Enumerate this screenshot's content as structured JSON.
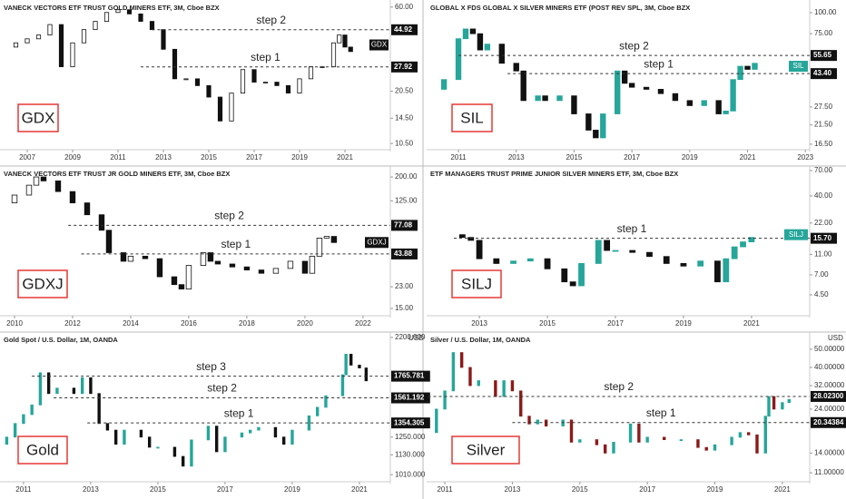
{
  "chart_data": [
    {
      "type": "candlestick",
      "title": "VANECK VECTORS ETF TRUST GOLD MINERS ETF, 3M, Cboe BZX",
      "label": "GDX",
      "log_scale": true,
      "up_color": "#ffffff",
      "down_color": "#111111",
      "tag": {
        "label": "GDX",
        "value": 37,
        "color": "#111111"
      },
      "xlim": [
        2005.8,
        2023.0
      ],
      "xticks": [
        2007,
        2009,
        2011,
        2013,
        2015,
        2017,
        2019,
        2021
      ],
      "ylim": [
        9.7,
        65.7
      ],
      "yticks": [
        {
          "value": 60,
          "label": "60.00"
        },
        {
          "value": 20.5,
          "label": "20.50"
        },
        {
          "value": 14.5,
          "label": "14.50"
        },
        {
          "value": 10.5,
          "label": "10.50"
        }
      ],
      "levels": [
        {
          "name": "step 2",
          "value": 44.92,
          "label": "44.92",
          "x": 2012.5
        },
        {
          "name": "step 1",
          "value": 27.92,
          "label": "27.92",
          "x": 2012.0
        }
      ],
      "open": 36,
      "x": [
        2006.5,
        2007,
        2007.5,
        2008,
        2008.5,
        2009,
        2009.5,
        2010,
        2010.5,
        2011,
        2011.5,
        2012,
        2012.5,
        2013,
        2013.5,
        2014,
        2014.5,
        2015,
        2015.5,
        2016,
        2016.5,
        2017,
        2017.5,
        2018,
        2018.5,
        2019,
        2019.5,
        2020,
        2020.5,
        2020.75,
        2021,
        2021.25
      ],
      "values": [
        38,
        40,
        42,
        48,
        28,
        38,
        45,
        50,
        56,
        58,
        55,
        50,
        45,
        35,
        24,
        24,
        22,
        19,
        14,
        20,
        27,
        23,
        23,
        22,
        20,
        24,
        28,
        28,
        38,
        42,
        36,
        34
      ]
    },
    {
      "type": "candlestick",
      "title": "GLOBAL X FDS GLOBAL X SILVER MINERS ETF (POST REV SPL, 3M, Cboe BZX",
      "label": "SIL",
      "log_scale": true,
      "up_color": "#26a69a",
      "down_color": "#111111",
      "tag": {
        "label": "SIL",
        "value": 48,
        "color": "#26a69a"
      },
      "xlim": [
        2009.9,
        2023.15
      ],
      "xticks": [
        2011,
        2013,
        2015,
        2017,
        2019,
        2021,
        2023
      ],
      "ylim": [
        15.3,
        119
      ],
      "yticks": [
        {
          "value": 100,
          "label": "100.00"
        },
        {
          "value": 75,
          "label": "75.00"
        },
        {
          "value": 27.5,
          "label": "27.50"
        },
        {
          "value": 21.5,
          "label": "21.50"
        },
        {
          "value": 16.5,
          "label": "16.50"
        }
      ],
      "levels": [
        {
          "name": "step 2",
          "value": 55.65,
          "label": "55.65",
          "x": 2011.0
        },
        {
          "name": "step 1",
          "value": 43.4,
          "label": "43.40",
          "x": 2012.7
        }
      ],
      "open": 35,
      "x": [
        2010.5,
        2011,
        2011.25,
        2011.5,
        2011.75,
        2012,
        2012.5,
        2013,
        2013.25,
        2013.75,
        2014,
        2014.5,
        2015,
        2015.5,
        2015.75,
        2016,
        2016.5,
        2016.75,
        2017,
        2017.5,
        2018,
        2018.5,
        2019,
        2019.5,
        2020,
        2020.25,
        2020.5,
        2020.75,
        2021,
        2021.25
      ],
      "values": [
        40,
        70,
        80,
        75,
        60,
        65,
        50,
        45,
        30,
        32,
        30,
        32,
        25,
        20,
        18,
        25,
        45,
        38,
        36,
        35,
        33,
        30,
        28,
        30,
        25,
        26,
        40,
        48,
        46,
        50
      ]
    },
    {
      "type": "candlestick",
      "title": "VANECK VECTORS ETF TRUST JR GOLD MINERS ETF, 3M, Cboe BZX",
      "label": "GDXJ",
      "log_scale": true,
      "up_color": "#ffffff",
      "down_color": "#111111",
      "tag": {
        "label": "GDXJ",
        "value": 55,
        "color": "#111111"
      },
      "xlim": [
        2009.5,
        2022.94
      ],
      "xticks": [
        2010,
        2012,
        2014,
        2016,
        2018,
        2020,
        2022
      ],
      "ylim": [
        13.0,
        248
      ],
      "yticks": [
        {
          "value": 200,
          "label": "200.00"
        },
        {
          "value": 125,
          "label": "125.00"
        },
        {
          "value": 23,
          "label": "23.00"
        },
        {
          "value": 15,
          "label": "15.00"
        }
      ],
      "levels": [
        {
          "name": "step 2",
          "value": 77.08,
          "label": "77.08",
          "x": 2011.85
        },
        {
          "name": "step 1",
          "value": 43.88,
          "label": "43.88",
          "x": 2012.3
        }
      ],
      "open": 120,
      "x": [
        2010,
        2010.5,
        2010.75,
        2011,
        2011.5,
        2012,
        2012.5,
        2013,
        2013.25,
        2013.75,
        2014,
        2014.5,
        2015,
        2015.5,
        2015.75,
        2016,
        2016.5,
        2016.75,
        2017,
        2017.5,
        2018,
        2018.5,
        2019,
        2019.5,
        2020,
        2020.25,
        2020.5,
        2020.75,
        2021
      ],
      "values": [
        140,
        170,
        200,
        185,
        150,
        120,
        95,
        70,
        45,
        38,
        42,
        40,
        28,
        24,
        22,
        35,
        45,
        38,
        36,
        34,
        32,
        30,
        33,
        38,
        30,
        42,
        60,
        62,
        55
      ]
    },
    {
      "type": "candlestick",
      "title": "ETF MANAGERS TRUST PRIME JUNIOR SILVER MINERS ETF, 3M, Cboe BZX",
      "label": "SILJ",
      "log_scale": true,
      "up_color": "#26a69a",
      "down_color": "#111111",
      "tag": {
        "label": "SILJ",
        "value": 17,
        "color": "#26a69a"
      },
      "xlim": [
        2011.45,
        2022.71
      ],
      "xticks": [
        2013,
        2015,
        2017,
        2019,
        2021
      ],
      "ylim": [
        2.84,
        77.4
      ],
      "yticks": [
        {
          "value": 70,
          "label": "70.00"
        },
        {
          "value": 40,
          "label": "40.00"
        },
        {
          "value": 22,
          "label": "22.00"
        },
        {
          "value": 11,
          "label": "11.00"
        },
        {
          "value": 7,
          "label": "7.00"
        },
        {
          "value": 4.5,
          "label": "4.50"
        }
      ],
      "levels": [
        {
          "name": "step 1",
          "value": 15.7,
          "label": "15.70",
          "x": 2012.25
        }
      ],
      "open": 17,
      "x": [
        2012.5,
        2012.75,
        2013,
        2013.5,
        2014,
        2014.5,
        2015,
        2015.5,
        2015.75,
        2016,
        2016.5,
        2016.75,
        2017,
        2017.5,
        2018,
        2018.5,
        2019,
        2019.5,
        2020,
        2020.25,
        2020.5,
        2020.75,
        2021
      ],
      "values": [
        16,
        15,
        10,
        9,
        9.5,
        10,
        8,
        6,
        5.5,
        9,
        15,
        12,
        12,
        11.5,
        10.5,
        9,
        8.5,
        9.5,
        6,
        10,
        13,
        14.5,
        16
      ]
    },
    {
      "type": "candlestick",
      "title": "Gold Spot / U.S. Dollar, 1M, OANDA",
      "label": "Gold",
      "log_scale": true,
      "unit": "USD",
      "up_color": "#26a69a",
      "down_color": "#111111",
      "xlim": [
        2010.3,
        2021.92
      ],
      "xticks": [
        2011,
        2013,
        2015,
        2017,
        2019,
        2021
      ],
      "ylim": [
        970,
        2268
      ],
      "yticks": [
        {
          "value": 2200,
          "label": "2200.000"
        },
        {
          "value": 1250,
          "label": "1250.000"
        },
        {
          "value": 1130,
          "label": "1130.000"
        },
        {
          "value": 1010,
          "label": "1010.000"
        }
      ],
      "levels": [
        {
          "name": "step 3",
          "value": 1765.781,
          "label": "1765.781",
          "x": 2011.25
        },
        {
          "name": "step 2",
          "value": 1561.192,
          "label": "1561.192",
          "x": 2011.9
        },
        {
          "name": "step 1",
          "value": 1354.305,
          "label": "1354.305",
          "x": 2012.9
        }
      ],
      "open": 1200,
      "x": [
        2010.5,
        2010.75,
        2011,
        2011.25,
        2011.5,
        2011.75,
        2012,
        2012.5,
        2012.75,
        2013,
        2013.25,
        2013.5,
        2013.75,
        2014,
        2014.5,
        2014.75,
        2015,
        2015.5,
        2015.75,
        2016,
        2016.5,
        2016.75,
        2017,
        2017.5,
        2017.75,
        2018,
        2018.5,
        2018.75,
        2019,
        2019.5,
        2019.75,
        2020,
        2020.5,
        2020.6,
        2020.75,
        2021,
        2021.2
      ],
      "values": [
        1250,
        1350,
        1420,
        1500,
        1800,
        1600,
        1650,
        1600,
        1750,
        1600,
        1350,
        1300,
        1200,
        1300,
        1250,
        1180,
        1180,
        1120,
        1060,
        1230,
        1330,
        1150,
        1250,
        1280,
        1300,
        1320,
        1250,
        1200,
        1300,
        1410,
        1480,
        1580,
        1780,
        2000,
        1880,
        1850,
        1720
      ]
    },
    {
      "type": "candlestick",
      "title": "Silver / U.S. Dollar, 1M, OANDA",
      "label": "Silver",
      "log_scale": true,
      "unit": "USD",
      "up_color": "#26a69a",
      "down_color": "#8b1a1a",
      "xlim": [
        2010.46,
        2021.81
      ],
      "xticks": [
        2011,
        2013,
        2015,
        2017,
        2019,
        2021
      ],
      "ylim": [
        9.85,
        61.7
      ],
      "yticks": [
        {
          "value": 50,
          "label": "50.00000"
        },
        {
          "value": 40,
          "label": "40.00000"
        },
        {
          "value": 32,
          "label": "32.00000"
        },
        {
          "value": 24,
          "label": "24.00000"
        },
        {
          "value": 14,
          "label": "14.00000"
        },
        {
          "value": 11,
          "label": "11.00000"
        }
      ],
      "levels": [
        {
          "name": "step 2",
          "value": 28.023,
          "label": "28.02300",
          "x": 2010.5
        },
        {
          "name": "step 1",
          "value": 20.34384,
          "label": "20.34384",
          "x": 2013.0
        }
      ],
      "open": 18,
      "x": [
        2010.75,
        2011,
        2011.25,
        2011.5,
        2011.75,
        2012,
        2012.5,
        2012.75,
        2013,
        2013.25,
        2013.5,
        2013.75,
        2014,
        2014.5,
        2014.75,
        2015,
        2015.5,
        2015.75,
        2016,
        2016.5,
        2016.75,
        2017,
        2017.5,
        2018,
        2018.5,
        2018.75,
        2019,
        2019.5,
        2019.75,
        2020,
        2020.25,
        2020.5,
        2020.6,
        2020.75,
        2021,
        2021.2
      ],
      "values": [
        24,
        30,
        48,
        40,
        32,
        34,
        28,
        34,
        30,
        22,
        20,
        21,
        19.5,
        21,
        16,
        16.5,
        15.5,
        14,
        16,
        20,
        16,
        17,
        16.5,
        16.5,
        15,
        14.5,
        15.5,
        17,
        18,
        17.5,
        14,
        22,
        28,
        24,
        26,
        27
      ]
    }
  ]
}
